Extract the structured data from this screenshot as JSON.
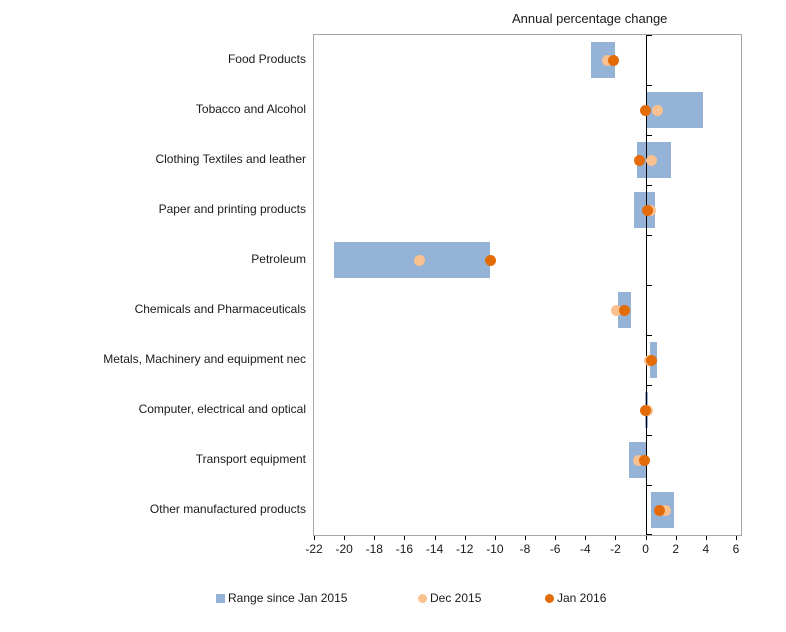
{
  "title": "Annual percentage change",
  "colors": {
    "range_bar": "#95B3D7",
    "dec_2015_dot": "#FAC090",
    "jan_2016_dot": "#E36C09",
    "axis_line": "#000000",
    "plot_border": "#A6A6A6",
    "text": "#1A1A1A"
  },
  "legend": {
    "items": [
      {
        "label": "Range since Jan 2015",
        "marker": "square",
        "color": "#95B3D7"
      },
      {
        "label": "Dec 2015",
        "marker": "circle",
        "color": "#FAC090"
      },
      {
        "label": "Jan 2016",
        "marker": "circle",
        "color": "#E36C09"
      }
    ]
  },
  "chart_data": {
    "type": "bar",
    "subtype": "horizontal-range-with-dots",
    "title": "Annual percentage change",
    "categories": [
      "Food Products",
      "Tobacco and Alcohol",
      "Clothing Textiles and leather",
      "Paper and printing products",
      "Petroleum",
      "Chemicals and Pharmaceuticals",
      "Metals, Machinery and equipment nec",
      "Computer, electrical and optical",
      "Transport equipment",
      "Other manufactured products"
    ],
    "series": [
      {
        "name": "Range since Jan 2015",
        "type": "range-bar",
        "color": "#95B3D7",
        "values": [
          [
            -3.6,
            -2.0
          ],
          [
            0.1,
            3.8
          ],
          [
            -0.6,
            1.7
          ],
          [
            -0.8,
            0.6
          ],
          [
            -20.7,
            -10.3
          ],
          [
            -1.8,
            -1.0
          ],
          [
            0.3,
            0.75
          ],
          [
            -0.05,
            0.15
          ],
          [
            -1.1,
            0.1
          ],
          [
            0.35,
            1.9
          ]
        ]
      },
      {
        "name": "Dec 2015",
        "type": "dot",
        "color": "#FAC090",
        "values": [
          -2.5,
          0.8,
          0.4,
          0.3,
          -15.0,
          -1.9,
          0.25,
          0.15,
          -0.5,
          1.35
        ]
      },
      {
        "name": "Jan 2016",
        "type": "dot",
        "color": "#E36C09",
        "values": [
          -2.1,
          0.0,
          -0.4,
          0.1,
          -10.3,
          -1.4,
          0.4,
          0.0,
          -0.1,
          0.9
        ]
      }
    ],
    "xlabel": "Annual percentage change",
    "ylabel": "",
    "xlim": [
      -22,
      6.33
    ],
    "xticks": [
      -22,
      -20,
      -18,
      -16,
      -14,
      -12,
      -10,
      -8,
      -6,
      -4,
      -2,
      0,
      2,
      4,
      6
    ],
    "grid": false,
    "legend_position": "bottom"
  }
}
